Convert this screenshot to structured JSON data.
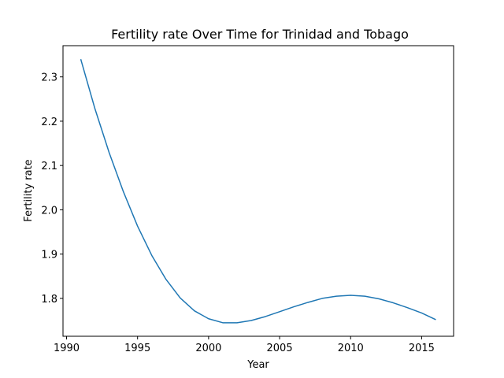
{
  "chart_data": {
    "type": "line",
    "title": "Fertility rate Over Time for Trinidad and Tobago",
    "xlabel": "Year",
    "ylabel": "Fertility rate",
    "xlim": [
      1989.75,
      2017.25
    ],
    "ylim": [
      1.7145,
      2.3705
    ],
    "xticks": [
      1990,
      1995,
      2000,
      2005,
      2010,
      2015
    ],
    "yticks": [
      1.8,
      1.9,
      2.0,
      2.1,
      2.2,
      2.3
    ],
    "ytick_labels": [
      "1.8",
      "1.9",
      "2.0",
      "2.1",
      "2.2",
      "2.3"
    ],
    "grid": false,
    "series": [
      {
        "color": "#1f77b4",
        "x": [
          1991,
          1992,
          1993,
          1994,
          1995,
          1996,
          1997,
          1998,
          1999,
          2000,
          2001,
          2002,
          2003,
          2004,
          2005,
          2006,
          2007,
          2008,
          2009,
          2010,
          2011,
          2012,
          2013,
          2014,
          2015,
          2016
        ],
        "y": [
          2.34,
          2.228,
          2.129,
          2.041,
          1.963,
          1.897,
          1.843,
          1.801,
          1.772,
          1.754,
          1.745,
          1.745,
          1.75,
          1.759,
          1.77,
          1.781,
          1.791,
          1.8,
          1.805,
          1.807,
          1.805,
          1.799,
          1.79,
          1.779,
          1.767,
          1.752
        ]
      }
    ]
  }
}
